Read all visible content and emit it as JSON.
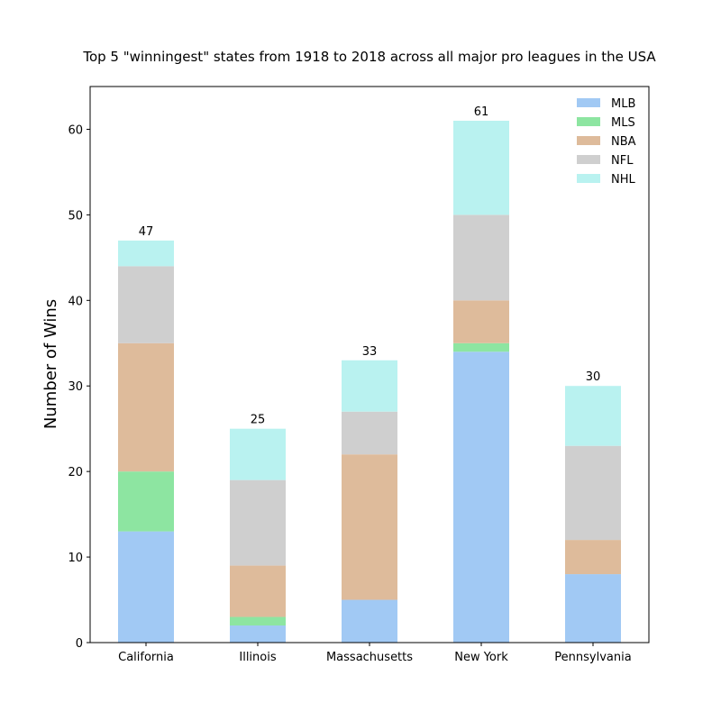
{
  "chart_data": {
    "type": "bar",
    "stacked": true,
    "title": "Top 5 \"winningest\" states from 1918 to 2018 across all major pro leagues in the USA",
    "xlabel": "",
    "ylabel": "Number of Wins",
    "ylim": [
      0,
      65
    ],
    "yticks": [
      0,
      10,
      20,
      30,
      40,
      50,
      60
    ],
    "grid": false,
    "legend_position": "top-right",
    "categories": [
      "California",
      "Illinois",
      "Massachusetts",
      "New York",
      "Pennsylvania"
    ],
    "series": [
      {
        "name": "MLB",
        "color": "#a1c9f4",
        "values": [
          13,
          2,
          5,
          34,
          8
        ]
      },
      {
        "name": "MLS",
        "color": "#8de5a1",
        "values": [
          7,
          1,
          0,
          1,
          0
        ]
      },
      {
        "name": "NBA",
        "color": "#debb9b",
        "values": [
          15,
          6,
          17,
          5,
          4
        ]
      },
      {
        "name": "NFL",
        "color": "#cfcfcf",
        "values": [
          9,
          10,
          5,
          10,
          11
        ]
      },
      {
        "name": "NHL",
        "color": "#b9f2f0",
        "values": [
          3,
          6,
          6,
          11,
          7
        ]
      }
    ],
    "totals": [
      47,
      25,
      33,
      61,
      30
    ]
  }
}
